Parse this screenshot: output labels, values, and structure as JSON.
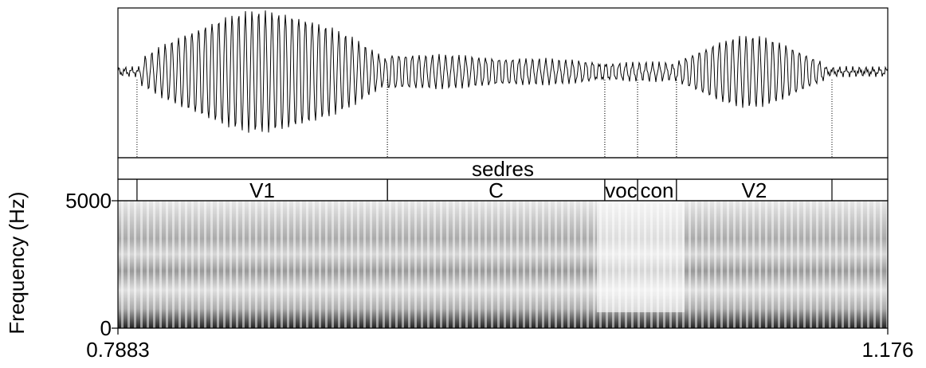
{
  "chart_data": {
    "type": "spectrogram",
    "ylabel": "Frequency (Hz)",
    "xlim": [
      0.7883,
      1.176
    ],
    "xticks": [
      0.7883,
      1.176
    ],
    "ylim": [
      0,
      5000
    ],
    "yticks": [
      0,
      5000
    ],
    "tiers": [
      {
        "intervals": [
          {
            "label": "sedres",
            "start": 0.7883,
            "end": 1.176
          }
        ]
      },
      {
        "intervals": [
          {
            "label": "V1",
            "start": 0.7979,
            "end": 0.924
          },
          {
            "label": "C",
            "start": 0.924,
            "end": 1.0335
          },
          {
            "label": "voc",
            "start": 1.0335,
            "end": 1.05
          },
          {
            "label": "con",
            "start": 1.05,
            "end": 1.0696
          },
          {
            "label": "V2",
            "start": 1.0696,
            "end": 1.1479
          }
        ]
      }
    ]
  }
}
